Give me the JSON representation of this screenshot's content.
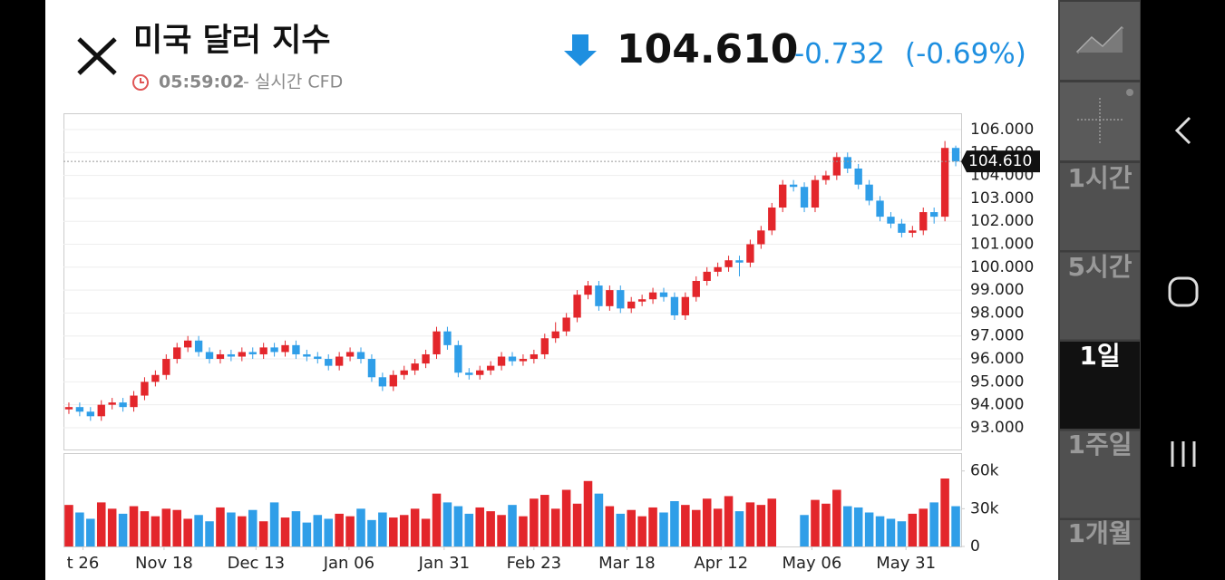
{
  "header": {
    "title": "미국 달러 지수",
    "time": "05:59:02",
    "source": "- 실시간 CFD",
    "change": "-0.732",
    "change_percent": "(-0.69%)"
  },
  "chart_data": {
    "type": "candlestick",
    "up_color": "#e3262b",
    "down_color": "#2f9ee8",
    "last_price": {
      "value": 104.61,
      "label": "104.610"
    },
    "xlim": [
      -0.5,
      82.5
    ],
    "xticks": [
      {
        "value": 1.3,
        "label": "t 26"
      },
      {
        "value": 8.8,
        "label": "Nov 18"
      },
      {
        "value": 17.3,
        "label": "Dec 13"
      },
      {
        "value": 25.9,
        "label": "Jan 06"
      },
      {
        "value": 34.7,
        "label": "Jan 31"
      },
      {
        "value": 43,
        "label": "Feb 23"
      },
      {
        "value": 51.6,
        "label": "Mar 18"
      },
      {
        "value": 60.3,
        "label": "Apr 12"
      },
      {
        "value": 68.7,
        "label": "May 06"
      },
      {
        "value": 77.4,
        "label": "May 31"
      }
    ],
    "ylim": [
      92.05,
      106.71
    ],
    "yticks": [
      {
        "value": 93,
        "label": "93.000"
      },
      {
        "value": 94,
        "label": "94.000"
      },
      {
        "value": 95,
        "label": "95.000"
      },
      {
        "value": 96,
        "label": "96.000"
      },
      {
        "value": 97,
        "label": "97.000"
      },
      {
        "value": 98,
        "label": "98.000"
      },
      {
        "value": 99,
        "label": "99.000"
      },
      {
        "value": 100,
        "label": "100.000"
      },
      {
        "value": 101,
        "label": "101.000"
      },
      {
        "value": 102,
        "label": "102.000"
      },
      {
        "value": 103,
        "label": "103.000"
      },
      {
        "value": 104,
        "label": "104.000"
      },
      {
        "value": 105,
        "label": "105.000"
      },
      {
        "value": 106,
        "label": "106.000"
      }
    ],
    "candles": [
      [
        93.8,
        94.1,
        93.6,
        93.9
      ],
      [
        93.9,
        94.1,
        93.5,
        93.7
      ],
      [
        93.7,
        93.9,
        93.3,
        93.5
      ],
      [
        93.5,
        94.2,
        93.3,
        94.0
      ],
      [
        94.0,
        94.3,
        93.8,
        94.1
      ],
      [
        94.1,
        94.3,
        93.7,
        93.9
      ],
      [
        93.9,
        94.6,
        93.7,
        94.4
      ],
      [
        94.4,
        95.2,
        94.2,
        95.0
      ],
      [
        95.0,
        95.5,
        94.8,
        95.3
      ],
      [
        95.3,
        96.2,
        95.1,
        96.0
      ],
      [
        96.0,
        96.7,
        95.8,
        96.5
      ],
      [
        96.5,
        97.0,
        96.3,
        96.8
      ],
      [
        96.8,
        97.0,
        96.1,
        96.3
      ],
      [
        96.3,
        96.5,
        95.8,
        96.0
      ],
      [
        96.0,
        96.4,
        95.8,
        96.2
      ],
      [
        96.2,
        96.4,
        95.9,
        96.1
      ],
      [
        96.1,
        96.5,
        95.9,
        96.3
      ],
      [
        96.3,
        96.5,
        96.0,
        96.2
      ],
      [
        96.2,
        96.7,
        96.0,
        96.5
      ],
      [
        96.5,
        96.7,
        96.1,
        96.3
      ],
      [
        96.3,
        96.8,
        96.1,
        96.6
      ],
      [
        96.6,
        96.8,
        96.0,
        96.2
      ],
      [
        96.2,
        96.4,
        95.9,
        96.1
      ],
      [
        96.1,
        96.3,
        95.8,
        96.0
      ],
      [
        96.0,
        96.2,
        95.5,
        95.7
      ],
      [
        95.7,
        96.3,
        95.5,
        96.1
      ],
      [
        96.1,
        96.5,
        95.9,
        96.3
      ],
      [
        96.3,
        96.5,
        95.8,
        96.0
      ],
      [
        96.0,
        96.2,
        95.0,
        95.2
      ],
      [
        95.2,
        95.4,
        94.6,
        94.8
      ],
      [
        94.8,
        95.5,
        94.6,
        95.3
      ],
      [
        95.3,
        95.7,
        95.1,
        95.5
      ],
      [
        95.5,
        96.0,
        95.3,
        95.8
      ],
      [
        95.8,
        96.4,
        95.6,
        96.2
      ],
      [
        96.2,
        97.4,
        96.0,
        97.2
      ],
      [
        97.2,
        97.4,
        96.4,
        96.6
      ],
      [
        96.6,
        96.8,
        95.2,
        95.4
      ],
      [
        95.4,
        95.6,
        95.1,
        95.3
      ],
      [
        95.3,
        95.7,
        95.1,
        95.5
      ],
      [
        95.5,
        95.9,
        95.3,
        95.7
      ],
      [
        95.7,
        96.3,
        95.5,
        96.1
      ],
      [
        96.1,
        96.3,
        95.7,
        95.9
      ],
      [
        95.9,
        96.2,
        95.7,
        96.0
      ],
      [
        96.0,
        96.4,
        95.8,
        96.2
      ],
      [
        96.2,
        97.1,
        96.0,
        96.9
      ],
      [
        96.9,
        97.6,
        96.7,
        97.2
      ],
      [
        97.2,
        98.0,
        97.0,
        97.8
      ],
      [
        97.8,
        99.0,
        97.6,
        98.8
      ],
      [
        98.8,
        99.4,
        98.6,
        99.2
      ],
      [
        99.2,
        99.4,
        98.1,
        98.3
      ],
      [
        98.3,
        99.2,
        98.1,
        99.0
      ],
      [
        99.0,
        99.2,
        98.0,
        98.2
      ],
      [
        98.2,
        98.7,
        98.0,
        98.5
      ],
      [
        98.5,
        98.8,
        98.3,
        98.6
      ],
      [
        98.6,
        99.1,
        98.4,
        98.9
      ],
      [
        98.9,
        99.1,
        98.5,
        98.7
      ],
      [
        98.7,
        98.9,
        97.7,
        97.9
      ],
      [
        97.9,
        98.9,
        97.7,
        98.7
      ],
      [
        98.7,
        99.6,
        98.5,
        99.4
      ],
      [
        99.4,
        100.0,
        99.2,
        99.8
      ],
      [
        99.8,
        100.2,
        99.6,
        100.0
      ],
      [
        100.0,
        100.5,
        99.8,
        100.3
      ],
      [
        100.3,
        100.5,
        99.6,
        100.2
      ],
      [
        100.2,
        101.2,
        100.0,
        101.0
      ],
      [
        101.0,
        101.8,
        100.8,
        101.6
      ],
      [
        101.6,
        102.8,
        101.4,
        102.6
      ],
      [
        102.6,
        103.8,
        102.4,
        103.6
      ],
      [
        103.6,
        103.8,
        103.3,
        103.5
      ],
      [
        103.5,
        103.7,
        102.4,
        102.6
      ],
      [
        102.6,
        104.0,
        102.4,
        103.8
      ],
      [
        103.8,
        104.2,
        103.6,
        104.0
      ],
      [
        104.0,
        105.0,
        103.8,
        104.8
      ],
      [
        104.8,
        105.0,
        104.1,
        104.3
      ],
      [
        104.3,
        104.5,
        103.4,
        103.6
      ],
      [
        103.6,
        103.8,
        102.7,
        102.9
      ],
      [
        102.9,
        103.1,
        102.0,
        102.2
      ],
      [
        102.2,
        102.4,
        101.7,
        101.9
      ],
      [
        101.9,
        102.1,
        101.3,
        101.5
      ],
      [
        101.5,
        101.8,
        101.3,
        101.6
      ],
      [
        101.6,
        102.6,
        101.4,
        102.4
      ],
      [
        102.4,
        102.6,
        101.9,
        102.2
      ],
      [
        102.2,
        105.5,
        102.0,
        105.2
      ],
      [
        105.2,
        105.3,
        104.4,
        104.61
      ]
    ],
    "volume": [
      33000,
      27000,
      22000,
      35000,
      30000,
      26000,
      32000,
      28000,
      24000,
      30000,
      29000,
      22000,
      25000,
      20000,
      31000,
      27000,
      24000,
      29000,
      20000,
      35000,
      23000,
      28000,
      19000,
      25000,
      22000,
      26000,
      24000,
      30000,
      21000,
      27000,
      23000,
      25000,
      30000,
      22000,
      42000,
      35000,
      32000,
      26000,
      31000,
      28000,
      25000,
      33000,
      24000,
      38000,
      41000,
      30000,
      45000,
      34000,
      52000,
      42000,
      32000,
      26000,
      29000,
      24000,
      31000,
      27000,
      36000,
      33000,
      29000,
      38000,
      30000,
      40000,
      28000,
      35000,
      33000,
      38000,
      0,
      0,
      25000,
      37000,
      34000,
      45000,
      32000,
      31000,
      27000,
      24000,
      22000,
      20000,
      26000,
      30000,
      35000,
      54000,
      32000
    ],
    "volume_ylim": [
      0,
      72000
    ],
    "volume_yticks": [
      {
        "value": 0,
        "label": "0"
      },
      {
        "value": 30000,
        "label": "30k"
      },
      {
        "value": 60000,
        "label": "60k"
      }
    ]
  },
  "sidebar": {
    "timeframes": [
      "1시간",
      "5시간",
      "1일",
      "1주일",
      "1개월"
    ],
    "selected": 2
  }
}
